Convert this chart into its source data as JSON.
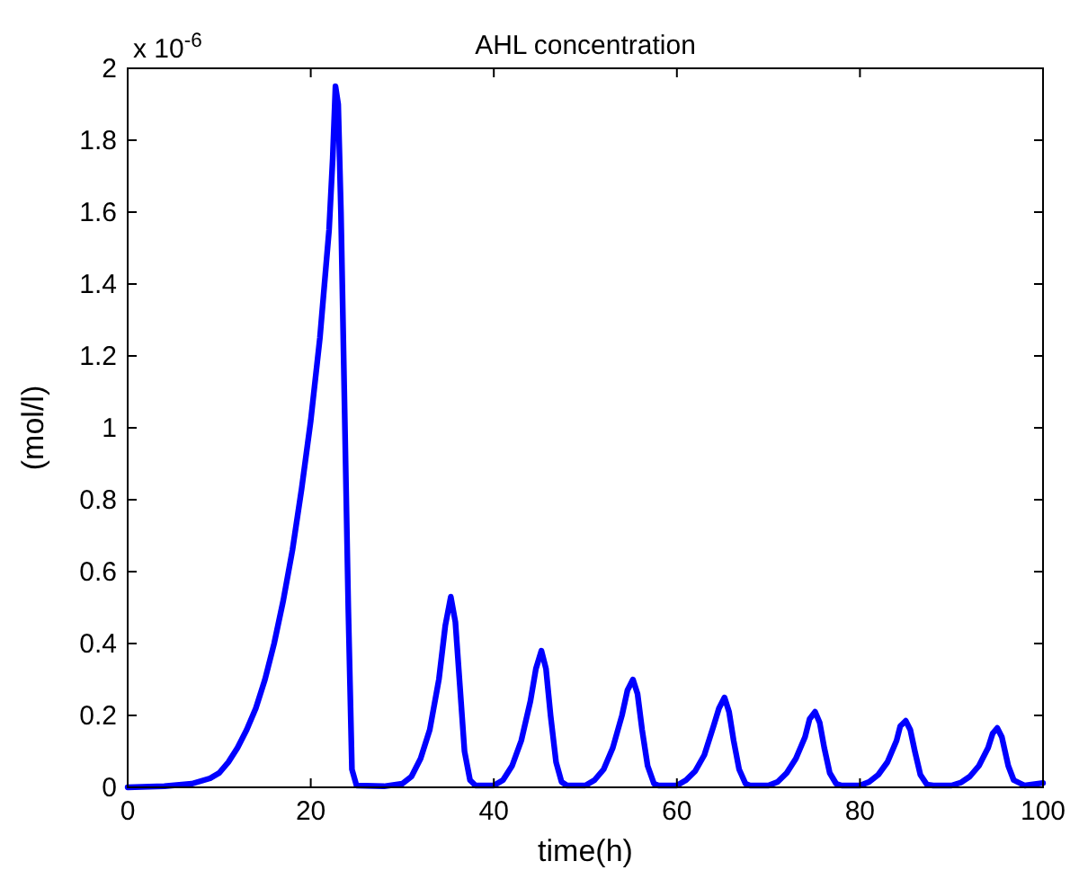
{
  "chart_data": {
    "type": "line",
    "title": "AHL concentration",
    "xlabel": "time(h)",
    "ylabel": "(mol/l)",
    "annotations": [
      "x 10$^{-6}$"
    ],
    "x": [
      0,
      4,
      7,
      9,
      10,
      11,
      12,
      13,
      14,
      15,
      16,
      17,
      18,
      19,
      20,
      21,
      22,
      22.4,
      22.7,
      23,
      23.3,
      23.7,
      24.1,
      24.5,
      25,
      28,
      30,
      31,
      32,
      33,
      34,
      34.7,
      35.3,
      35.8,
      36.3,
      36.8,
      37.4,
      38,
      40,
      41,
      42,
      43,
      44,
      44.6,
      45.2,
      45.7,
      46.2,
      46.8,
      47.4,
      48,
      50,
      51,
      52,
      53,
      54,
      54.6,
      55.2,
      55.7,
      56.2,
      56.8,
      57.5,
      58,
      60,
      61,
      62,
      63,
      64,
      64.6,
      65.2,
      65.7,
      66.2,
      66.8,
      67.5,
      68,
      70,
      71,
      72,
      73,
      74,
      74.5,
      75.1,
      75.6,
      76.1,
      76.7,
      77.4,
      78,
      80,
      81,
      82,
      83,
      84,
      84.4,
      85,
      85.5,
      86,
      86.6,
      87.3,
      88,
      90,
      91,
      92,
      93,
      94,
      94.5,
      95,
      95.5,
      96.2,
      96.8,
      98,
      100
    ],
    "series": [
      {
        "color": "#0000ff",
        "values": [
          0,
          0.003,
          0.01,
          0.025,
          0.04,
          0.07,
          0.11,
          0.16,
          0.22,
          0.3,
          0.4,
          0.52,
          0.66,
          0.83,
          1.02,
          1.25,
          1.55,
          1.75,
          1.95,
          1.9,
          1.6,
          1.05,
          0.5,
          0.05,
          0.005,
          0.003,
          0.01,
          0.03,
          0.08,
          0.16,
          0.3,
          0.45,
          0.53,
          0.46,
          0.28,
          0.1,
          0.02,
          0.005,
          0.005,
          0.02,
          0.06,
          0.13,
          0.24,
          0.33,
          0.38,
          0.33,
          0.2,
          0.07,
          0.015,
          0.005,
          0.005,
          0.02,
          0.05,
          0.11,
          0.2,
          0.27,
          0.3,
          0.26,
          0.16,
          0.06,
          0.01,
          0.005,
          0.005,
          0.02,
          0.045,
          0.09,
          0.17,
          0.22,
          0.25,
          0.21,
          0.13,
          0.05,
          0.01,
          0.005,
          0.005,
          0.015,
          0.04,
          0.08,
          0.14,
          0.19,
          0.21,
          0.18,
          0.11,
          0.04,
          0.01,
          0.005,
          0.005,
          0.015,
          0.035,
          0.07,
          0.13,
          0.17,
          0.185,
          0.16,
          0.1,
          0.035,
          0.008,
          0.005,
          0.005,
          0.013,
          0.03,
          0.06,
          0.11,
          0.15,
          0.165,
          0.14,
          0.06,
          0.02,
          0.005,
          0.012
        ]
      }
    ],
    "xlim": [
      0,
      100
    ],
    "xticks": [
      0,
      20,
      40,
      60,
      80,
      100
    ],
    "ylim": [
      0,
      2
    ],
    "yticks": [
      0,
      0.2,
      0.4,
      0.6,
      0.8,
      1,
      1.2,
      1.4,
      1.6,
      1.8,
      2
    ]
  }
}
